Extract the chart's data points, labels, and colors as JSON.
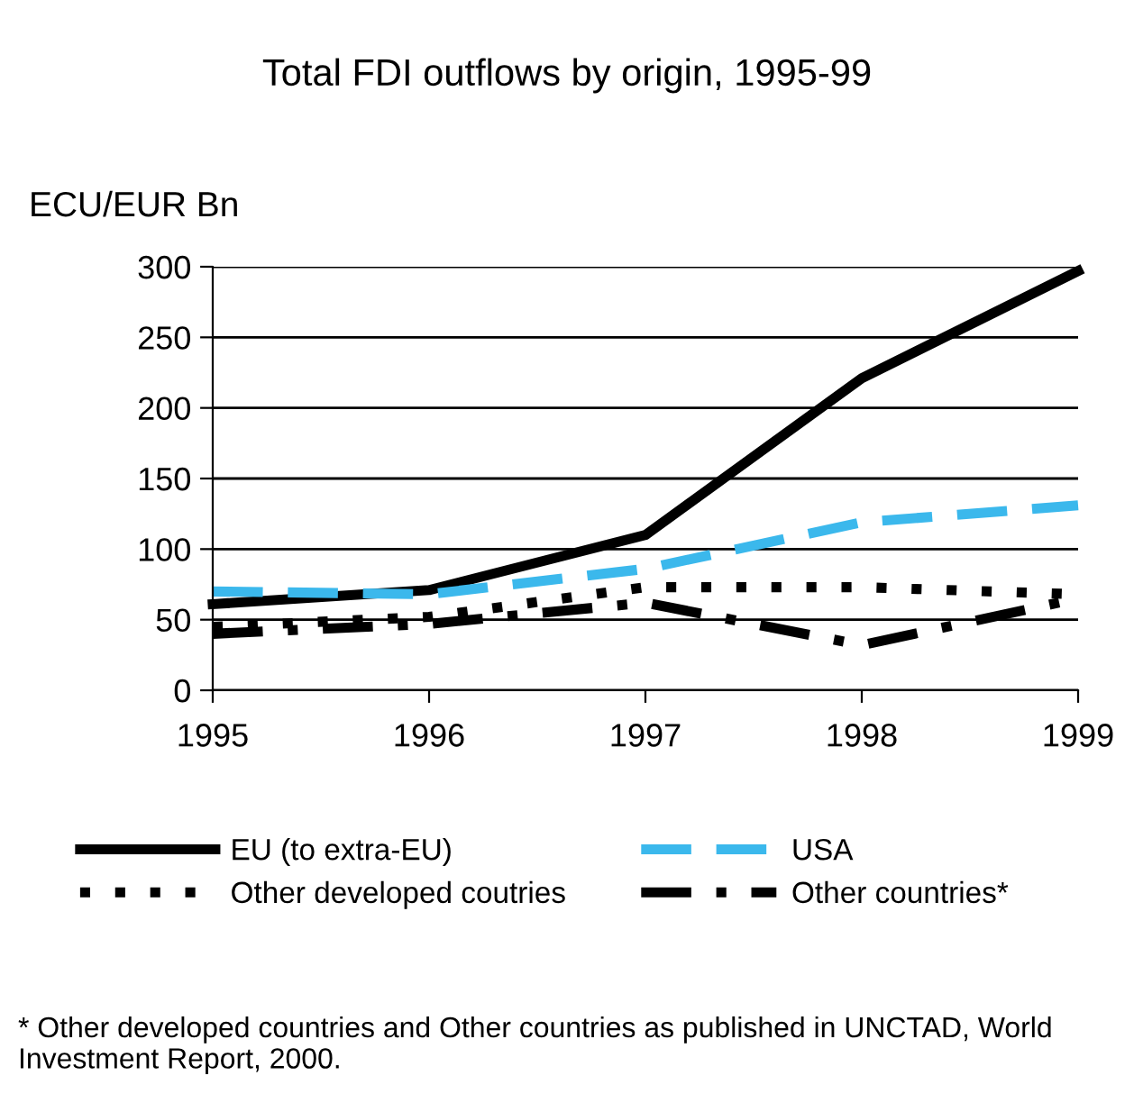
{
  "chart_data": {
    "type": "line",
    "title": "Total FDI outflows by origin, 1995-99",
    "ylabel": "ECU/EUR Bn",
    "x": [
      1995,
      1996,
      1997,
      1998,
      1999
    ],
    "series": [
      {
        "name": "EU (to extra-EU)",
        "color": "#000000",
        "line_style": "solid",
        "values": [
          61,
          71,
          110,
          221,
          297
        ]
      },
      {
        "name": "USA",
        "color": "#3bb8ec",
        "line_style": "dashed",
        "values": [
          70,
          68,
          86,
          119,
          131
        ]
      },
      {
        "name": "Other developed coutries",
        "color": "#000000",
        "line_style": "dotted",
        "values": [
          45,
          52,
          73,
          73,
          68
        ]
      },
      {
        "name": "Other countries*",
        "color": "#000000",
        "line_style": "dashdot",
        "values": [
          40,
          47,
          62,
          32,
          65
        ]
      }
    ],
    "xlim": [
      1995,
      1999
    ],
    "xticks": [
      1995,
      1996,
      1997,
      1998,
      1999
    ],
    "ylim": [
      0,
      300
    ],
    "yticks": [
      0,
      50,
      100,
      150,
      200,
      250,
      300
    ],
    "grid": "y",
    "legend": "bottom",
    "marker": "none",
    "annotations": [
      "* Other developed countries and Other countries as published in UNCTAD, World Investment Report, 2000."
    ]
  }
}
